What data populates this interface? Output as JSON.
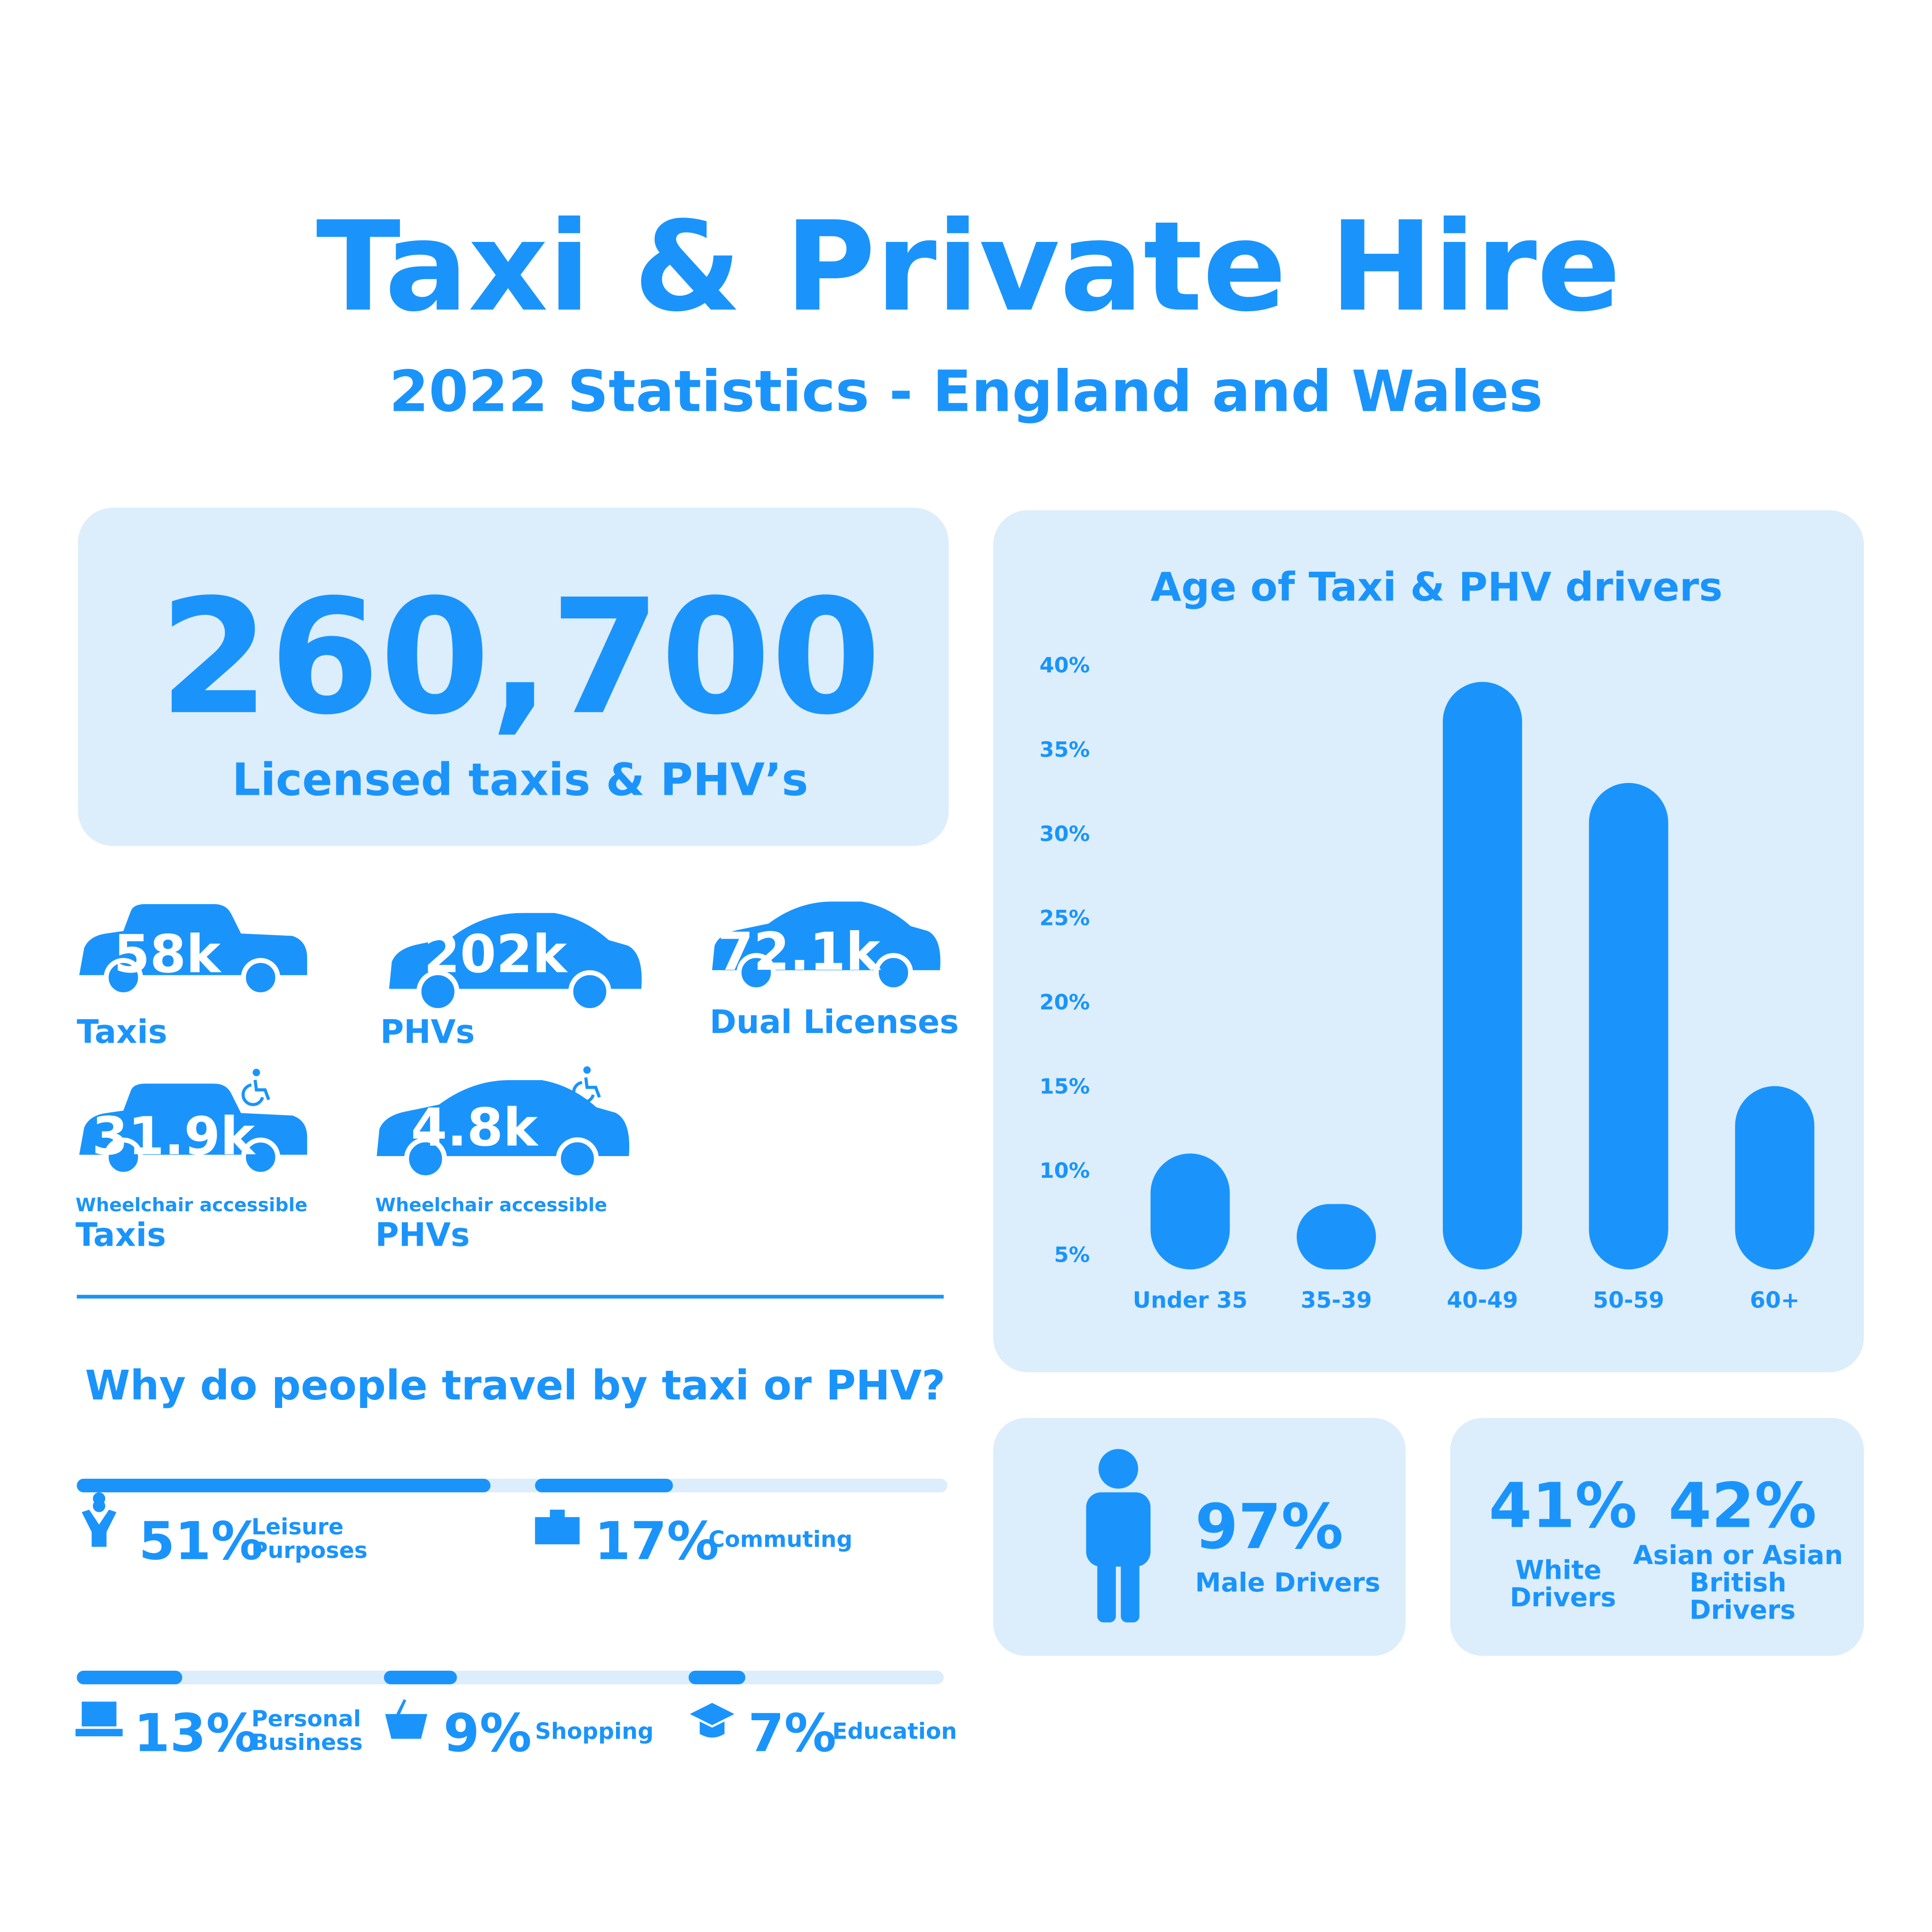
{
  "header": {
    "title": "Taxi & Private Hire",
    "subtitle": "2022 Statistics - England and Wales"
  },
  "total": {
    "value": "260,700",
    "label": "Licensed taxis & PHV’s"
  },
  "vehicles": [
    {
      "value": "58k",
      "label": "Taxis"
    },
    {
      "value": "202k",
      "label": "PHVs"
    },
    {
      "value": "72.1k",
      "label": "Dual Licenses"
    },
    {
      "value": "31.9k",
      "note": "Wheelchair accessible",
      "label": "Taxis"
    },
    {
      "value": "4.8k",
      "note": "Wheelchair accessible",
      "label": "PHVs"
    }
  ],
  "chart_data": [
    {
      "type": "bar",
      "title": "Age of Taxi & PHV drivers",
      "categories": [
        "Under 35",
        "35-39",
        "40-49",
        "50-59",
        "60+"
      ],
      "values": [
        11,
        8,
        39,
        33,
        15
      ],
      "color": "#1a94fb",
      "ylim": [
        5,
        40
      ],
      "yticks": [
        {
          "value": 5,
          "label": "5%"
        },
        {
          "value": 10,
          "label": "10%"
        },
        {
          "value": 15,
          "label": "15%"
        },
        {
          "value": 20,
          "label": "20%"
        },
        {
          "value": 25,
          "label": "25%"
        },
        {
          "value": 30,
          "label": "30%"
        },
        {
          "value": 35,
          "label": "35%"
        },
        {
          "value": 40,
          "label": "40%"
        }
      ],
      "grid": false
    },
    {
      "type": "progress",
      "title": "Why do people travel by taxi or PHV?",
      "categories": [
        "Leisure Purposes",
        "Commuting",
        "Personal Business",
        "Shopping",
        "Education"
      ],
      "values": [
        51,
        17,
        13,
        9,
        7
      ],
      "value_labels": [
        "51%",
        "17%",
        "13%",
        "9%",
        "7%"
      ],
      "color": "#1a94fb",
      "xlim": [
        0,
        100
      ]
    }
  ],
  "drivers": {
    "male": {
      "value": "97%",
      "label": "Male Drivers"
    },
    "white": {
      "value": "41%",
      "label": "White Drivers"
    },
    "asian": {
      "value": "42%",
      "label": "Asian or Asian British Drivers"
    }
  }
}
